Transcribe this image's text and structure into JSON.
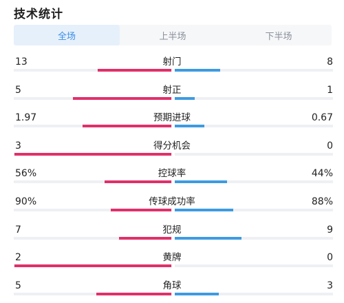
{
  "title": "技术统计",
  "tabs": [
    {
      "label": "全场",
      "active": true
    },
    {
      "label": "上半场",
      "active": false
    },
    {
      "label": "下半场",
      "active": false
    }
  ],
  "colors": {
    "home": "#e0306a",
    "away": "#3d9be0",
    "active_tab": "#3b8ee6"
  },
  "stats": [
    {
      "label": "射门",
      "left": "13",
      "right": "8",
      "left_frac": 0.62,
      "right_frac": 0.38
    },
    {
      "label": "射正",
      "left": "5",
      "right": "1",
      "left_frac": 0.83,
      "right_frac": 0.17
    },
    {
      "label": "预期进球",
      "left": "1.97",
      "right": "0.67",
      "left_frac": 0.75,
      "right_frac": 0.25
    },
    {
      "label": "得分机会",
      "left": "3",
      "right": "0",
      "left_frac": 1.0,
      "right_frac": 0.0
    },
    {
      "label": "控球率",
      "left": "56%",
      "right": "44%",
      "left_frac": 0.56,
      "right_frac": 0.44
    },
    {
      "label": "传球成功率",
      "left": "90%",
      "right": "88%",
      "left_frac": 0.51,
      "right_frac": 0.49
    },
    {
      "label": "犯规",
      "left": "7",
      "right": "9",
      "left_frac": 0.44,
      "right_frac": 0.56
    },
    {
      "label": "黄牌",
      "left": "2",
      "right": "0",
      "left_frac": 1.0,
      "right_frac": 0.0
    },
    {
      "label": "角球",
      "left": "5",
      "right": "3",
      "left_frac": 0.63,
      "right_frac": 0.37
    }
  ]
}
